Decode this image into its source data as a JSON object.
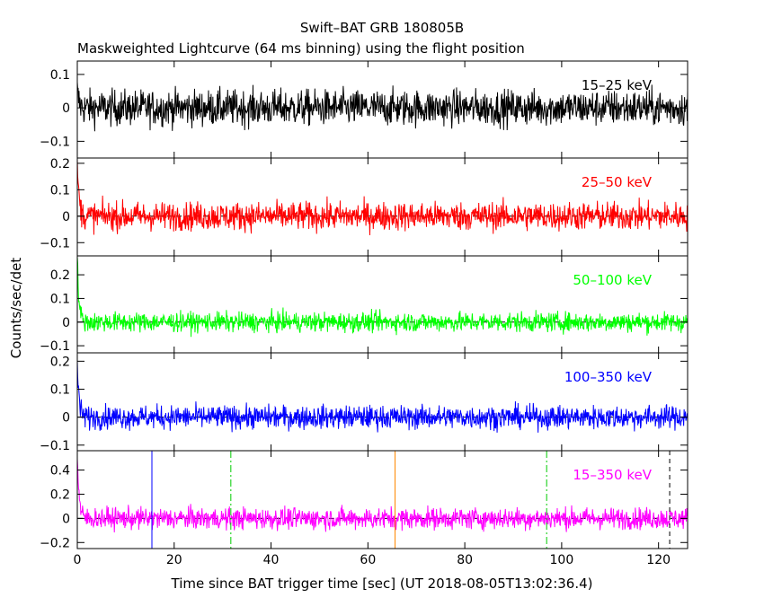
{
  "chart_data": {
    "type": "line",
    "title": "Swift–BAT GRB 180805B",
    "subtitle": "Maskweighted Lightcurve (64 ms binning) using the flight position",
    "xlabel": "Time since BAT trigger time [sec] (UT 2018-08-05T13:02:36.4)",
    "ylabel": "Counts/sec/det",
    "xlim": [
      0,
      126
    ],
    "x_ticks": [
      0,
      20,
      40,
      60,
      80,
      100,
      120
    ],
    "x_tick_labels": [
      "0",
      "20",
      "40",
      "60",
      "80",
      "100",
      "120"
    ],
    "panels": [
      {
        "band": "15–25 keV",
        "color": "#000000",
        "ylim": [
          -0.15,
          0.14
        ],
        "y_ticks": [
          -0.1,
          0,
          0.1
        ],
        "y_tick_labels": [
          "−0.1",
          "0",
          "0.1"
        ],
        "noise": 0.045,
        "peak": 0.05,
        "zero_line": false
      },
      {
        "band": "25–50 keV",
        "color": "#ff0000",
        "ylim": [
          -0.15,
          0.22
        ],
        "y_ticks": [
          -0.1,
          0,
          0.1,
          0.2
        ],
        "y_tick_labels": [
          "−0.1",
          "0",
          "0.1",
          "0.2"
        ],
        "noise": 0.045,
        "peak": 0.21,
        "zero_line": true
      },
      {
        "band": "50–100 keV",
        "color": "#00ff00",
        "ylim": [
          -0.13,
          0.28
        ],
        "y_ticks": [
          -0.1,
          0,
          0.1,
          0.2
        ],
        "y_tick_labels": [
          "−0.1",
          "0",
          "0.1",
          "0.2"
        ],
        "noise": 0.035,
        "peak": 0.27,
        "zero_line": true
      },
      {
        "band": "100–350 keV",
        "color": "#0000ff",
        "ylim": [
          -0.12,
          0.23
        ],
        "y_ticks": [
          -0.1,
          0,
          0.1,
          0.2
        ],
        "y_tick_labels": [
          "−0.1",
          "0",
          "0.1",
          "0.2"
        ],
        "noise": 0.035,
        "peak": 0.2,
        "zero_line": true
      },
      {
        "band": "15–350 keV",
        "color": "#ff00ff",
        "ylim": [
          -0.25,
          0.56
        ],
        "y_ticks": [
          -0.2,
          0,
          0.2,
          0.4
        ],
        "y_tick_labels": [
          "−0.2",
          "0",
          "0.2",
          "0.4"
        ],
        "noise": 0.075,
        "peak": 0.55,
        "zero_line": true
      }
    ],
    "markers": [
      {
        "x": 15.4,
        "color": "#0000ff",
        "style": "solid"
      },
      {
        "x": 31.7,
        "color": "#00cc00",
        "style": "dashdot"
      },
      {
        "x": 65.6,
        "color": "#ff8800",
        "style": "solid"
      },
      {
        "x": 96.9,
        "color": "#00cc00",
        "style": "dashdot"
      },
      {
        "x": 122.3,
        "color": "#000000",
        "style": "dashed"
      }
    ],
    "bin_seconds": 0.064,
    "grid": false
  }
}
